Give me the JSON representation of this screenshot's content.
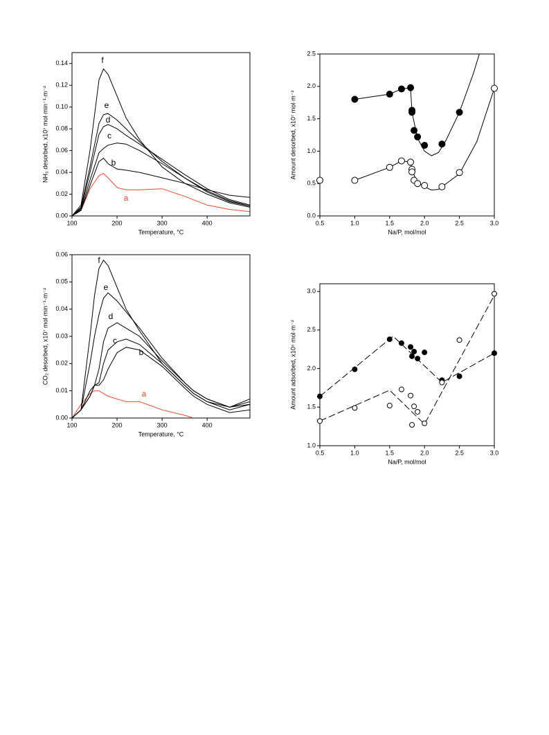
{
  "chart_data": [
    {
      "type": "line",
      "xlabel": "Temperature, °C",
      "ylabel": "NH₃ desorbed, x10⁷ mol·min⁻¹·m⁻²",
      "xlim": [
        100,
        495
      ],
      "ylim": [
        0,
        0.15
      ],
      "xticks": [
        100,
        200,
        300,
        400
      ],
      "yticks": [
        {
          "value": 0,
          "label": "0.00"
        },
        0.02,
        0.04,
        0.06,
        0.08,
        {
          "value": 0.1,
          "label": "0.10"
        },
        0.12,
        0.14
      ],
      "x": [
        100,
        120,
        140,
        160,
        170,
        180,
        200,
        220,
        250,
        300,
        350,
        400,
        450,
        495
      ],
      "series": [
        {
          "name": "a",
          "color": "#e8482a",
          "values": [
            0,
            0.005,
            0.025,
            0.037,
            0.039,
            0.035,
            0.026,
            0.024,
            0.024,
            0.025,
            0.018,
            0.01,
            0.006,
            0.004
          ]
        },
        {
          "name": "b",
          "color": "#000000",
          "values": [
            0,
            0.005,
            0.028,
            0.05,
            0.053,
            0.048,
            0.043,
            0.042,
            0.04,
            0.035,
            0.03,
            0.024,
            0.019,
            0.017
          ]
        },
        {
          "name": "c",
          "color": "#000000",
          "values": [
            0,
            0.006,
            0.033,
            0.058,
            0.062,
            0.065,
            0.067,
            0.066,
            0.06,
            0.048,
            0.035,
            0.023,
            0.014,
            0.009
          ]
        },
        {
          "name": "d",
          "color": "#000000",
          "values": [
            0,
            0.007,
            0.04,
            0.075,
            0.082,
            0.084,
            0.08,
            0.074,
            0.066,
            0.052,
            0.038,
            0.025,
            0.015,
            0.01
          ]
        },
        {
          "name": "e",
          "color": "#000000",
          "values": [
            0,
            0.008,
            0.045,
            0.085,
            0.093,
            0.094,
            0.088,
            0.08,
            0.068,
            0.05,
            0.035,
            0.022,
            0.013,
            0.009
          ]
        },
        {
          "name": "f",
          "color": "#000000",
          "values": [
            0,
            0.01,
            0.06,
            0.125,
            0.135,
            0.13,
            0.11,
            0.09,
            0.07,
            0.045,
            0.03,
            0.02,
            0.012,
            0.008
          ]
        }
      ]
    },
    {
      "type": "scatter",
      "xlabel": "Na/P, mol/mol",
      "ylabel": "Amount desorbed, x10⁷ mol·m⁻²",
      "xlim": [
        0.5,
        3.0
      ],
      "ylim": [
        0,
        2.5
      ],
      "xticks": [
        0.5,
        {
          "value": 1,
          "label": "1.0"
        },
        1.5,
        {
          "value": 2,
          "label": "2.0"
        },
        2.5,
        {
          "value": 3,
          "label": "3.0"
        }
      ],
      "yticks": [
        {
          "value": 0,
          "label": "0.0"
        },
        0.5,
        {
          "value": 1,
          "label": "1.0"
        },
        1.5,
        {
          "value": 2,
          "label": "2.0"
        },
        2.5
      ],
      "series": [
        {
          "marker": "filled",
          "color": "#000000",
          "x": [
            1.0,
            1.5,
            1.67,
            1.8,
            1.82,
            1.82,
            1.85,
            1.9,
            2.0,
            2.25,
            2.5
          ],
          "values": [
            1.8,
            1.88,
            1.96,
            1.98,
            1.63,
            1.6,
            1.32,
            1.22,
            1.09,
            1.11,
            1.6
          ]
        },
        {
          "marker": "open",
          "color": "#000000",
          "x": [
            0.5,
            1.0,
            1.5,
            1.67,
            1.8,
            1.82,
            1.82,
            1.85,
            1.9,
            2.0,
            2.25,
            2.5,
            3.0
          ],
          "values": [
            0.55,
            0.55,
            0.75,
            0.85,
            0.83,
            0.72,
            0.68,
            0.55,
            0.5,
            0.47,
            0.45,
            0.67,
            1.97
          ]
        },
        {
          "marker": "none",
          "dashed": false,
          "color": "#000000",
          "x": [
            1.0,
            1.5,
            1.67,
            1.8,
            1.82,
            1.9,
            2.0,
            2.1,
            2.2,
            2.3,
            2.5,
            2.7,
            2.8
          ],
          "values": [
            1.8,
            1.88,
            1.96,
            1.98,
            1.6,
            1.2,
            1.0,
            0.93,
            0.98,
            1.15,
            1.6,
            2.2,
            2.55
          ]
        },
        {
          "marker": "none",
          "dashed": false,
          "color": "#000000",
          "x": [
            1.0,
            1.5,
            1.67,
            1.8,
            1.82,
            1.9,
            2.0,
            2.1,
            2.2,
            2.5,
            2.75,
            3.0
          ],
          "values": [
            0.55,
            0.75,
            0.85,
            0.83,
            0.7,
            0.52,
            0.45,
            0.4,
            0.41,
            0.65,
            1.15,
            1.97
          ]
        }
      ]
    },
    {
      "type": "line",
      "xlabel": "Temperature, °C",
      "ylabel": "CO₂ desorbed, x10⁷ mol·min⁻¹·m⁻²",
      "xlim": [
        100,
        495
      ],
      "ylim": [
        0,
        0.06
      ],
      "xticks": [
        100,
        200,
        300,
        400
      ],
      "yticks": [
        {
          "value": 0,
          "label": "0.00"
        },
        0.01,
        0.02,
        0.03,
        0.04,
        0.05,
        0.06
      ],
      "x": [
        100,
        120,
        140,
        150,
        160,
        170,
        180,
        200,
        220,
        250,
        300,
        350,
        370,
        400,
        450,
        495
      ],
      "series": [
        {
          "name": "a",
          "color": "#e8482a",
          "values": [
            0,
            0.005,
            0.009,
            0.01,
            0.01,
            0.009,
            0.008,
            0.007,
            0.006,
            0.006,
            0.003,
            0.001,
            0,
            null,
            null,
            null
          ]
        },
        {
          "name": "b",
          "color": "#000000",
          "values": [
            0,
            0.003,
            0.008,
            0.012,
            0.012,
            0.014,
            0.018,
            0.024,
            0.026,
            0.025,
            0.019,
            0.011,
            0.008,
            0.005,
            0.002,
            0.003
          ]
        },
        {
          "name": "c",
          "color": "#000000",
          "values": [
            0,
            0.003,
            0.008,
            0.012,
            0.013,
            0.02,
            0.025,
            0.028,
            0.029,
            0.027,
            0.02,
            0.012,
            0.009,
            0.006,
            0.003,
            0.005
          ]
        },
        {
          "name": "d",
          "color": "#000000",
          "values": [
            0,
            0.003,
            0.01,
            0.012,
            0.018,
            0.028,
            0.033,
            0.035,
            0.033,
            0.03,
            0.021,
            0.013,
            0.01,
            0.007,
            0.004,
            0.007
          ]
        },
        {
          "name": "e",
          "color": "#000000",
          "values": [
            0,
            0.003,
            0.02,
            0.03,
            0.038,
            0.044,
            0.046,
            0.043,
            0.039,
            0.033,
            0.022,
            0.013,
            0.01,
            0.007,
            0.004,
            0.006
          ]
        },
        {
          "name": "f",
          "color": "#000000",
          "values": [
            0,
            0.003,
            0.03,
            0.045,
            0.055,
            0.058,
            0.056,
            0.048,
            0.04,
            0.032,
            0.02,
            0.012,
            0.009,
            0.006,
            0.004,
            0.005
          ]
        }
      ]
    },
    {
      "type": "scatter",
      "xlabel": "Na/P, mol/mol",
      "ylabel": "Amount adsorbed, x10⁶ mol·m⁻²",
      "xlim": [
        0.5,
        3.0
      ],
      "ylim": [
        1.0,
        3.1
      ],
      "xticks": [
        0.5,
        {
          "value": 1,
          "label": "1.0"
        },
        1.5,
        {
          "value": 2,
          "label": "2.0"
        },
        2.5,
        {
          "value": 3,
          "label": "3.0"
        }
      ],
      "yticks": [
        {
          "value": 1,
          "label": "1.0"
        },
        1.5,
        {
          "value": 2,
          "label": "2.0"
        },
        2.5,
        {
          "value": 3,
          "label": "3.0"
        }
      ],
      "series": [
        {
          "marker": "filled",
          "color": "#000000",
          "x": [
            0.5,
            1.0,
            1.5,
            1.67,
            1.8,
            1.82,
            1.85,
            1.9,
            2.0,
            2.25,
            2.5,
            3.0
          ],
          "values": [
            1.64,
            1.99,
            2.38,
            2.33,
            2.28,
            2.16,
            2.22,
            2.13,
            2.21,
            1.85,
            1.9,
            2.2
          ]
        },
        {
          "marker": "open",
          "color": "#000000",
          "x": [
            0.5,
            1.0,
            1.5,
            1.67,
            1.8,
            1.82,
            1.85,
            1.9,
            2.0,
            2.25,
            2.5,
            3.0
          ],
          "values": [
            1.32,
            1.49,
            1.52,
            1.73,
            1.65,
            1.27,
            1.51,
            1.44,
            1.29,
            1.82,
            2.37,
            2.97
          ]
        },
        {
          "marker": "none",
          "dashed": true,
          "color": "#000000",
          "x": [
            0.5,
            1.55,
            2.25,
            3.0
          ],
          "values": [
            1.64,
            2.42,
            1.82,
            2.2
          ]
        },
        {
          "marker": "none",
          "dashed": true,
          "color": "#000000",
          "x": [
            0.5,
            1.5,
            2.0,
            3.0
          ],
          "values": [
            1.32,
            1.72,
            1.28,
            2.95
          ]
        }
      ]
    }
  ]
}
